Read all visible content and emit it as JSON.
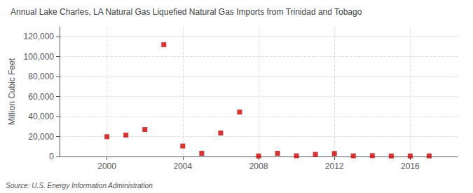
{
  "chart_data": {
    "type": "scatter",
    "title": "Annual Lake Charles, LA Natural Gas Liquefied Natural Gas Imports from Trinidad and Tobago",
    "y_label": "Million Cubic Feet",
    "source": "Source: U.S. Energy Information Administration",
    "x": [
      2000,
      2001,
      2002,
      2003,
      2004,
      2005,
      2006,
      2007,
      2008,
      2009,
      2010,
      2011,
      2012,
      2013,
      2014,
      2015,
      2016,
      2017
    ],
    "values": [
      19800,
      21500,
      27000,
      112000,
      10500,
      3200,
      23500,
      44500,
      500,
      3200,
      700,
      2200,
      3000,
      600,
      800,
      500,
      500,
      600
    ],
    "color": "#cc0000",
    "marker": "square",
    "xlim": [
      1997.5,
      2018.5
    ],
    "xticks": [
      2000,
      2004,
      2008,
      2012,
      2016
    ],
    "ylim": [
      0,
      130000
    ],
    "yticks": [
      0,
      {
        "value": 20000,
        "label": "20,000"
      },
      {
        "value": 40000,
        "label": "40,000"
      },
      {
        "value": 60000,
        "label": "60,000"
      },
      {
        "value": 80000,
        "label": "80,000"
      },
      {
        "value": 100000,
        "label": "100,000"
      },
      {
        "value": 120000,
        "label": "120,000"
      }
    ],
    "grid": true
  }
}
